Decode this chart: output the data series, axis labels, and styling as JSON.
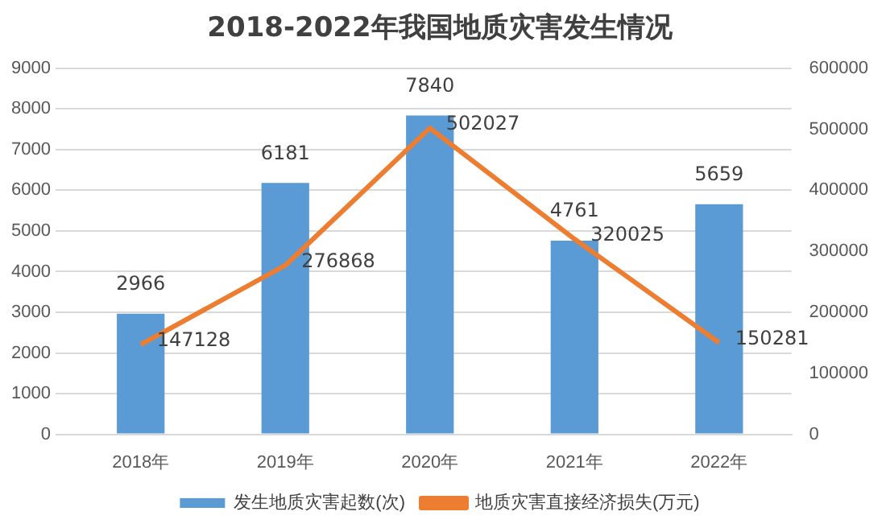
{
  "chart_data": {
    "type": "bar",
    "title": "2018-2022年我国地质灾害发生情况",
    "categories": [
      "2018年",
      "2019年",
      "2020年",
      "2021年",
      "2022年"
    ],
    "series": [
      {
        "name": "发生地质灾害起数(次)",
        "color": "#5b9bd5",
        "values": [
          2966,
          6181,
          7840,
          4761,
          5659
        ]
      },
      {
        "name": "地质灾害直接经济损失(万元)",
        "type": "line",
        "axis": "y2",
        "color": "#ed7d31",
        "values": [
          147128,
          276868,
          502027,
          320025,
          150281
        ]
      }
    ],
    "ylim": [
      0,
      9000
    ],
    "yticks": [
      0,
      1000,
      2000,
      3000,
      4000,
      5000,
      6000,
      7000,
      8000,
      9000
    ],
    "y2lim": [
      0,
      600000
    ],
    "y2ticks": [
      0,
      100000,
      200000,
      300000,
      400000,
      500000,
      600000
    ],
    "grid": "y",
    "legend": "bottom",
    "marker": "none",
    "data_labels": true
  }
}
